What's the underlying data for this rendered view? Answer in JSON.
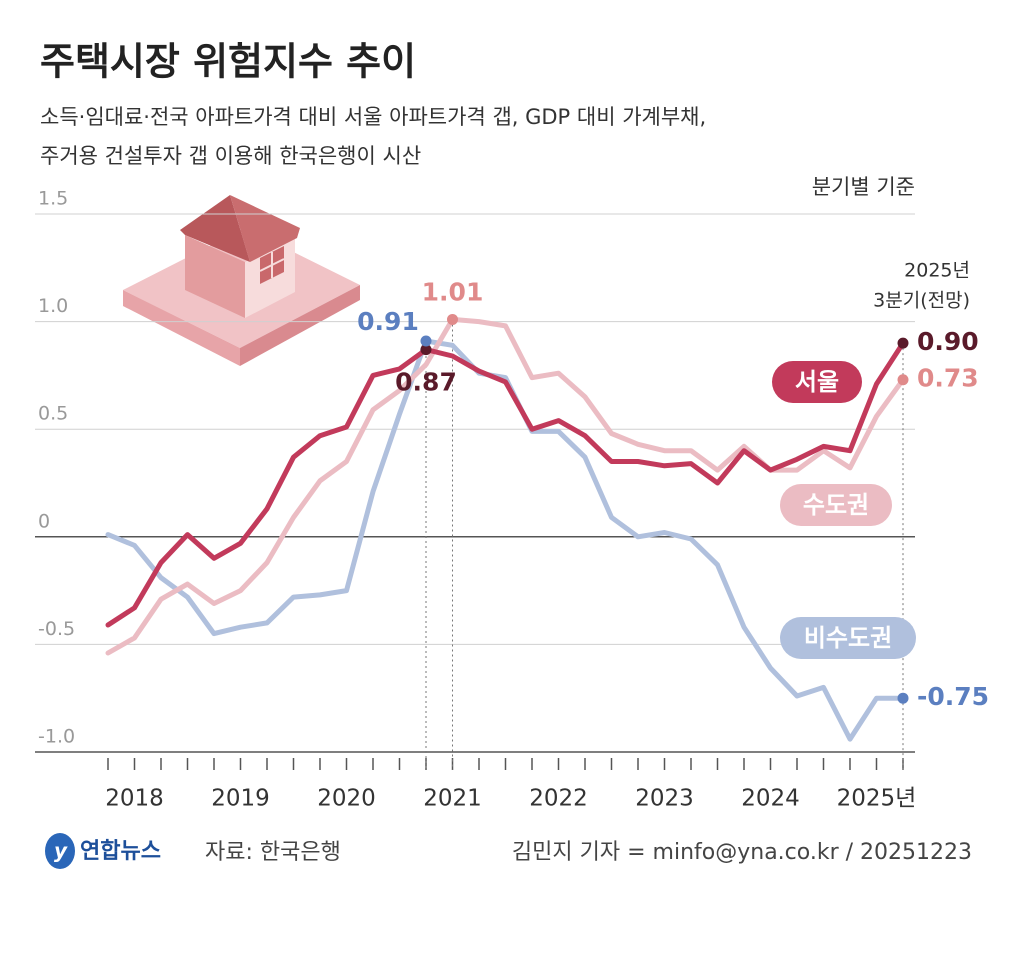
{
  "chart_data": {
    "type": "line",
    "title": "주택시장 위험지수 추이",
    "subtitle": [
      "소득·임대료·전국 아파트가격 대비 서울 아파트가격 갭, GDP 대비 가계부채,",
      "주거용 건설투자 갭 이용해 한국은행이 시산"
    ],
    "note": "분기별 기준",
    "annotation": [
      "2025년",
      "3분기(전망)"
    ],
    "source": "자료: 한국은행",
    "logo": "연합뉴스",
    "credit": "김민지 기자 = minfo@yna.co.kr / 20251223",
    "categories": [
      null,
      "2018",
      null,
      null,
      null,
      "2019",
      null,
      null,
      null,
      "2020",
      null,
      null,
      null,
      "2021",
      null,
      null,
      null,
      "2022",
      null,
      null,
      null,
      "2023",
      null,
      null,
      null,
      "2024",
      null,
      null,
      null,
      "2025년",
      null
    ],
    "ylim": [
      -1,
      1.5
    ],
    "yticks": [
      1.5,
      {
        "value": 1,
        "label": "1.0"
      },
      0.5,
      0,
      -0.5,
      {
        "value": -1,
        "label": "-1.0"
      }
    ],
    "grid": true,
    "series": [
      {
        "name": "서울",
        "color": "#c23a5b",
        "values": [
          -0.41,
          -0.33,
          -0.12,
          0.01,
          -0.1,
          -0.03,
          0.13,
          0.37,
          0.47,
          0.51,
          0.75,
          0.78,
          0.87,
          0.84,
          0.77,
          0.72,
          0.5,
          0.54,
          0.47,
          0.35,
          0.35,
          0.33,
          0.34,
          0.25,
          0.4,
          0.31,
          0.36,
          0.42,
          0.4,
          0.71,
          0.9
        ],
        "value_labels": [
          null,
          null,
          null,
          null,
          null,
          null,
          null,
          null,
          null,
          null,
          null,
          null,
          "0.87",
          null,
          null,
          null,
          null,
          null,
          null,
          null,
          null,
          null,
          null,
          null,
          null,
          null,
          null,
          null,
          null,
          null,
          "0.90"
        ]
      },
      {
        "name": "수도권",
        "color": "#ebbcc3",
        "values": [
          -0.54,
          -0.47,
          -0.29,
          -0.22,
          -0.31,
          -0.25,
          -0.12,
          0.09,
          0.26,
          0.35,
          0.59,
          0.68,
          0.8,
          1.01,
          1.0,
          0.98,
          0.74,
          0.76,
          0.65,
          0.48,
          0.43,
          0.4,
          0.4,
          0.31,
          0.42,
          0.31,
          0.31,
          0.4,
          0.32,
          0.56,
          0.73
        ],
        "value_labels": [
          null,
          null,
          null,
          null,
          null,
          null,
          null,
          null,
          null,
          null,
          null,
          null,
          null,
          "1.01",
          null,
          null,
          null,
          null,
          null,
          null,
          null,
          null,
          null,
          null,
          null,
          null,
          null,
          null,
          null,
          null,
          "0.73"
        ]
      },
      {
        "name": "비수도권",
        "color": "#b0c0dd",
        "values": [
          0.01,
          -0.04,
          -0.19,
          -0.28,
          -0.45,
          -0.42,
          -0.4,
          -0.28,
          -0.27,
          -0.25,
          0.21,
          0.57,
          0.91,
          0.89,
          0.76,
          0.74,
          0.49,
          0.49,
          0.37,
          0.09,
          0.0,
          0.02,
          -0.01,
          -0.13,
          -0.42,
          -0.61,
          -0.74,
          -0.7,
          -0.94,
          -0.75,
          -0.75
        ],
        "value_labels": [
          null,
          null,
          null,
          null,
          null,
          null,
          null,
          null,
          null,
          null,
          null,
          null,
          "0.91",
          null,
          null,
          null,
          null,
          null,
          null,
          null,
          null,
          null,
          null,
          null,
          null,
          null,
          null,
          null,
          null,
          null,
          "-0.75"
        ]
      }
    ]
  }
}
